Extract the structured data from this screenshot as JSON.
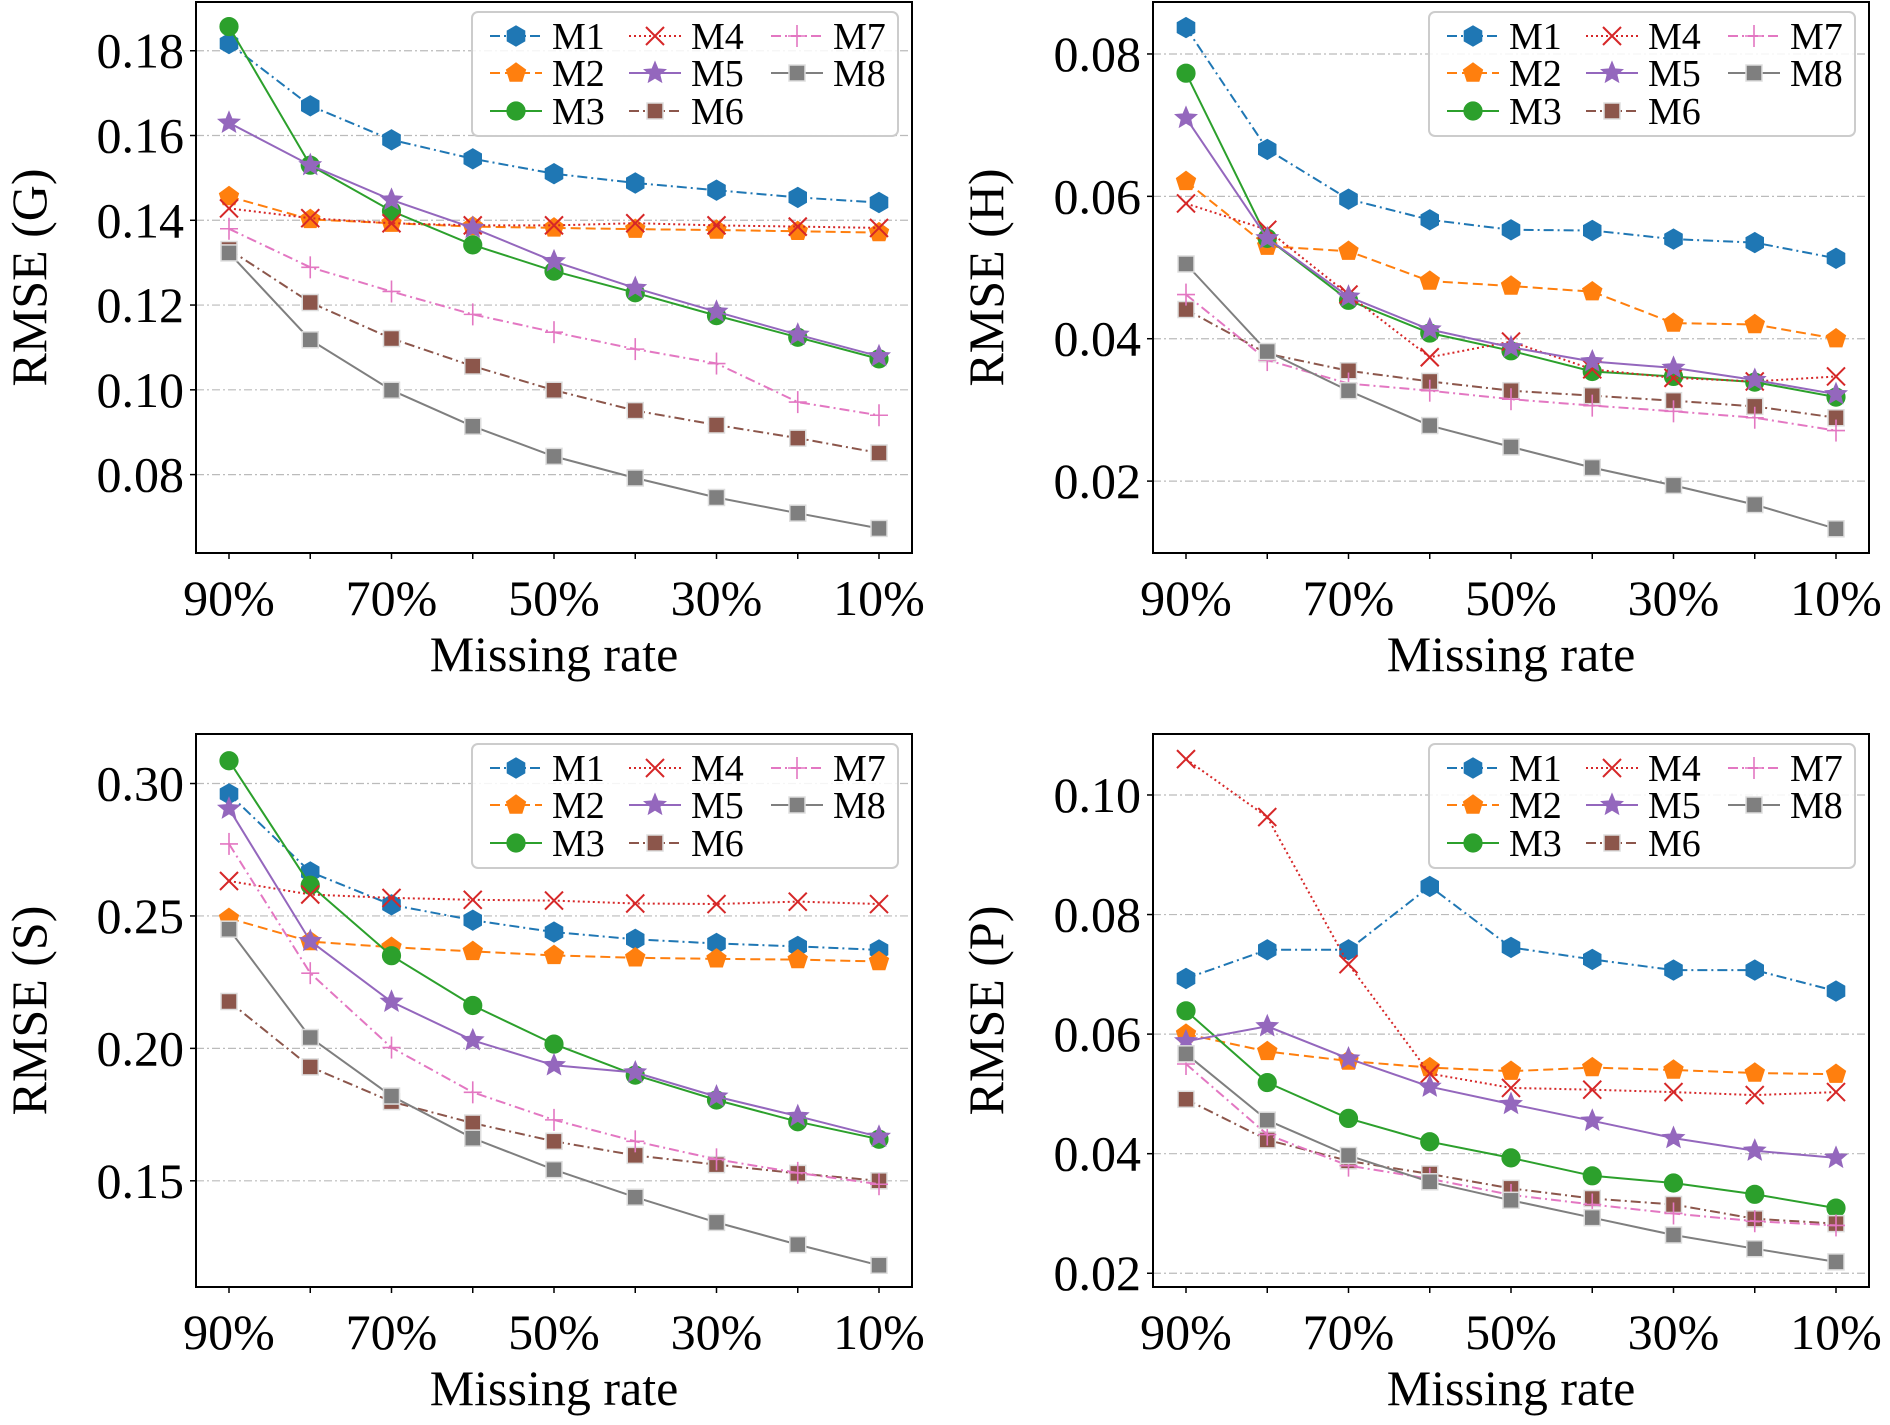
{
  "chart_data": [
    {
      "type": "line",
      "xlabel": "Missing rate",
      "ylabel": "RMSE (G)",
      "categories": [
        "90%",
        "80%",
        "70%",
        "60%",
        "50%",
        "40%",
        "30%",
        "20%",
        "10%"
      ],
      "xtick_labels": [
        "90%",
        "70%",
        "50%",
        "30%",
        "10%"
      ],
      "ylim": [
        0.0615,
        0.1915
      ],
      "yticks": [
        "0.08",
        "0.10",
        "0.12",
        "0.14",
        "0.16",
        "0.18"
      ],
      "grid": "horizontal",
      "legend": "top-right",
      "series": [
        {
          "name": "M1",
          "values": [
            0.1817,
            0.167,
            0.159,
            0.1545,
            0.151,
            0.1488,
            0.1471,
            0.1454,
            0.1442
          ]
        },
        {
          "name": "M2",
          "values": [
            0.1456,
            0.1402,
            0.1393,
            0.1385,
            0.1382,
            0.1379,
            0.1377,
            0.1374,
            0.1371
          ]
        },
        {
          "name": "M3",
          "values": [
            0.1857,
            0.153,
            0.1422,
            0.1342,
            0.128,
            0.1229,
            0.1175,
            0.1124,
            0.1073
          ]
        },
        {
          "name": "M4",
          "values": [
            0.1428,
            0.1405,
            0.1393,
            0.1388,
            0.1388,
            0.1393,
            0.1388,
            0.1385,
            0.1382
          ]
        },
        {
          "name": "M5",
          "values": [
            0.163,
            0.153,
            0.1448,
            0.1382,
            0.1303,
            0.124,
            0.1184,
            0.113,
            0.1079
          ]
        },
        {
          "name": "M6",
          "values": [
            0.1331,
            0.1206,
            0.1121,
            0.1056,
            0.0999,
            0.0951,
            0.0917,
            0.0886,
            0.0851
          ]
        },
        {
          "name": "M7",
          "values": [
            0.138,
            0.1289,
            0.1232,
            0.1178,
            0.1136,
            0.1096,
            0.1062,
            0.0971,
            0.094
          ]
        },
        {
          "name": "M8",
          "values": [
            0.1323,
            0.1118,
            0.0999,
            0.0914,
            0.0843,
            0.0792,
            0.0746,
            0.0709,
            0.0673
          ]
        }
      ]
    },
    {
      "type": "line",
      "xlabel": "Missing rate",
      "ylabel": "RMSE (H)",
      "categories": [
        "90%",
        "80%",
        "70%",
        "60%",
        "50%",
        "40%",
        "30%",
        "20%",
        "10%"
      ],
      "xtick_labels": [
        "90%",
        "70%",
        "50%",
        "30%",
        "10%"
      ],
      "ylim": [
        0.0099,
        0.0873
      ],
      "yticks": [
        "0.02",
        "0.04",
        "0.06",
        "0.08"
      ],
      "grid": "horizontal",
      "legend": "top-right",
      "series": [
        {
          "name": "M1",
          "values": [
            0.0837,
            0.0666,
            0.0596,
            0.0567,
            0.0553,
            0.0552,
            0.054,
            0.0535,
            0.0513
          ]
        },
        {
          "name": "M2",
          "values": [
            0.0621,
            0.053,
            0.0523,
            0.0481,
            0.0474,
            0.0466,
            0.0422,
            0.042,
            0.04
          ]
        },
        {
          "name": "M3",
          "values": [
            0.0773,
            0.0541,
            0.0454,
            0.0408,
            0.0383,
            0.0354,
            0.0347,
            0.0339,
            0.0318
          ]
        },
        {
          "name": "M4",
          "values": [
            0.059,
            0.0553,
            0.0462,
            0.0374,
            0.0396,
            0.0357,
            0.0345,
            0.034,
            0.0347
          ]
        },
        {
          "name": "M5",
          "values": [
            0.071,
            0.0541,
            0.0459,
            0.0413,
            0.0388,
            0.0368,
            0.0359,
            0.0342,
            0.0322
          ]
        },
        {
          "name": "M6",
          "values": [
            0.0441,
            0.0379,
            0.0355,
            0.034,
            0.0327,
            0.032,
            0.0313,
            0.0305,
            0.0289
          ]
        },
        {
          "name": "M7",
          "values": [
            0.0462,
            0.037,
            0.0337,
            0.0327,
            0.0315,
            0.0306,
            0.0298,
            0.0289,
            0.0271
          ]
        },
        {
          "name": "M8",
          "values": [
            0.0505,
            0.0382,
            0.0327,
            0.0278,
            0.0248,
            0.0219,
            0.0194,
            0.0167,
            0.0133
          ]
        }
      ]
    },
    {
      "type": "line",
      "xlabel": "Missing rate",
      "ylabel": "RMSE (S)",
      "categories": [
        "90%",
        "80%",
        "70%",
        "60%",
        "50%",
        "40%",
        "30%",
        "20%",
        "10%"
      ],
      "xtick_labels": [
        "90%",
        "70%",
        "50%",
        "30%",
        "10%"
      ],
      "ylim": [
        0.1099,
        0.3187
      ],
      "yticks": [
        "0.15",
        "0.20",
        "0.25",
        "0.30"
      ],
      "grid": "horizontal",
      "legend": "top-right",
      "series": [
        {
          "name": "M1",
          "values": [
            0.2961,
            0.2666,
            0.2542,
            0.2484,
            0.2439,
            0.2412,
            0.2396,
            0.2385,
            0.2372
          ]
        },
        {
          "name": "M2",
          "values": [
            0.2491,
            0.2403,
            0.2382,
            0.2366,
            0.2351,
            0.2342,
            0.2338,
            0.2335,
            0.2328
          ]
        },
        {
          "name": "M3",
          "values": [
            0.3086,
            0.2616,
            0.235,
            0.2162,
            0.2016,
            0.1899,
            0.1805,
            0.1723,
            0.1657
          ]
        },
        {
          "name": "M4",
          "values": [
            0.2632,
            0.2581,
            0.2568,
            0.2561,
            0.2558,
            0.2547,
            0.2545,
            0.2554,
            0.2545
          ]
        },
        {
          "name": "M5",
          "values": [
            0.2905,
            0.2405,
            0.2176,
            0.203,
            0.1936,
            0.1909,
            0.1818,
            0.1744,
            0.1666
          ]
        },
        {
          "name": "M6",
          "values": [
            0.2177,
            0.193,
            0.1799,
            0.1718,
            0.1649,
            0.1596,
            0.1561,
            0.1528,
            0.15
          ]
        },
        {
          "name": "M7",
          "values": [
            0.2772,
            0.2284,
            0.2003,
            0.1834,
            0.173,
            0.1649,
            0.1581,
            0.153,
            0.1487
          ]
        },
        {
          "name": "M8",
          "values": [
            0.245,
            0.2041,
            0.182,
            0.1661,
            0.1542,
            0.1438,
            0.1343,
            0.1259,
            0.1181
          ]
        }
      ]
    },
    {
      "type": "line",
      "xlabel": "Missing rate",
      "ylabel": "RMSE (P)",
      "categories": [
        "90%",
        "80%",
        "70%",
        "60%",
        "50%",
        "40%",
        "30%",
        "20%",
        "10%"
      ],
      "xtick_labels": [
        "90%",
        "70%",
        "50%",
        "30%",
        "10%"
      ],
      "ylim": [
        0.0177,
        0.1102
      ],
      "yticks": [
        "0.02",
        "0.04",
        "0.06",
        "0.08",
        "0.10"
      ],
      "grid": "horizontal",
      "legend": "top-right",
      "series": [
        {
          "name": "M1",
          "values": [
            0.0693,
            0.0741,
            0.0741,
            0.0847,
            0.0745,
            0.0725,
            0.0707,
            0.0707,
            0.0672
          ]
        },
        {
          "name": "M2",
          "values": [
            0.06,
            0.0571,
            0.0555,
            0.0544,
            0.0538,
            0.0544,
            0.054,
            0.0535,
            0.0533
          ]
        },
        {
          "name": "M3",
          "values": [
            0.0639,
            0.0519,
            0.0459,
            0.042,
            0.0393,
            0.0363,
            0.0351,
            0.0332,
            0.0309
          ]
        },
        {
          "name": "M4",
          "values": [
            0.106,
            0.0963,
            0.0717,
            0.0534,
            0.051,
            0.0507,
            0.0503,
            0.0498,
            0.0503
          ]
        },
        {
          "name": "M5",
          "values": [
            0.0588,
            0.0613,
            0.0559,
            0.0512,
            0.0483,
            0.0455,
            0.0426,
            0.0405,
            0.0393
          ]
        },
        {
          "name": "M6",
          "values": [
            0.0491,
            0.0423,
            0.0388,
            0.0366,
            0.0342,
            0.0325,
            0.0315,
            0.0291,
            0.0283
          ]
        },
        {
          "name": "M7",
          "values": [
            0.055,
            0.0432,
            0.038,
            0.0358,
            0.0331,
            0.0315,
            0.03,
            0.0287,
            0.028
          ]
        },
        {
          "name": "M8",
          "values": [
            0.0567,
            0.0456,
            0.0397,
            0.0353,
            0.0322,
            0.0293,
            0.0264,
            0.0241,
            0.0219
          ]
        }
      ]
    }
  ],
  "series_style": {
    "M1": {
      "color": "#1f77b4",
      "marker": "hexagon",
      "line": "dash-dot"
    },
    "M2": {
      "color": "#ff7f0e",
      "marker": "pentagon",
      "line": "dashed"
    },
    "M3": {
      "color": "#2ca02c",
      "marker": "circle",
      "line": "solid"
    },
    "M4": {
      "color": "#d62728",
      "marker": "x",
      "line": "dotted"
    },
    "M5": {
      "color": "#9467bd",
      "marker": "star",
      "line": "solid"
    },
    "M6": {
      "color": "#8c564b",
      "marker": "square",
      "line": "dash-dot"
    },
    "M7": {
      "color": "#e377c2",
      "marker": "plus",
      "line": "dash-dot"
    },
    "M8": {
      "color": "#7f7f7f",
      "marker": "square",
      "line": "solid"
    }
  }
}
